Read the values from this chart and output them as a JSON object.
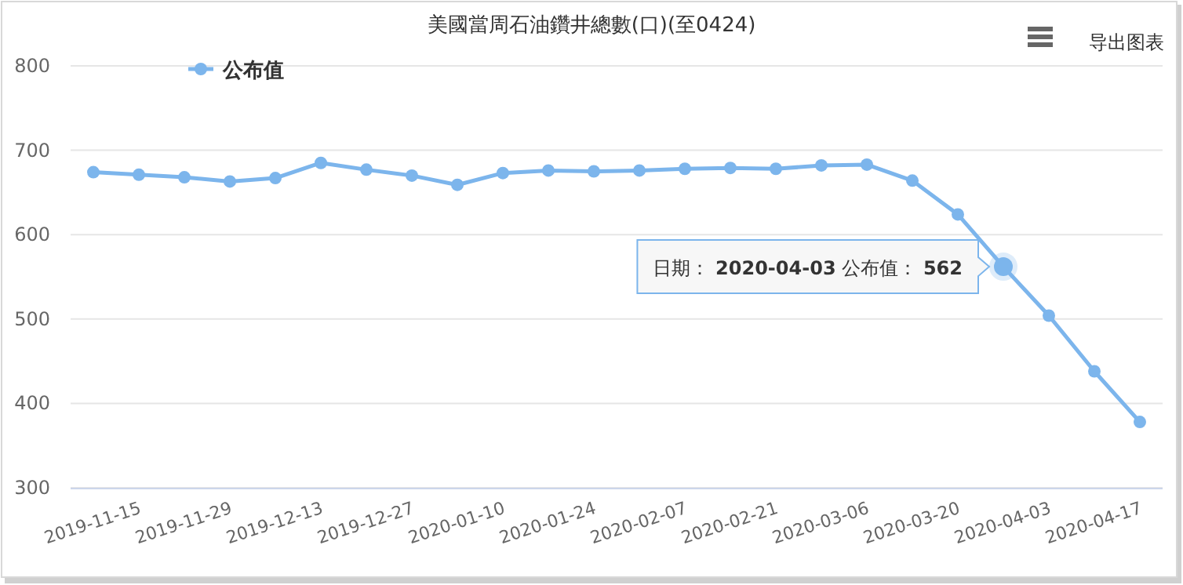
{
  "chart_data": {
    "type": "line",
    "title": "美國當周石油鑽井總數(口)(至0424)",
    "categories": [
      "2019-11-15",
      null,
      "2019-11-29",
      null,
      "2019-12-13",
      null,
      "2019-12-27",
      null,
      "2020-01-10",
      null,
      "2020-01-24",
      null,
      "2020-02-07",
      null,
      "2020-02-21",
      null,
      "2020-03-06",
      null,
      "2020-03-20",
      null,
      "2020-04-03",
      null,
      "2020-04-17",
      null
    ],
    "series": [
      {
        "name": "公布值",
        "color": "#7cb5ec",
        "values": [
          674,
          671,
          668,
          663,
          667,
          685,
          677,
          670,
          659,
          673,
          676,
          675,
          676,
          678,
          679,
          678,
          682,
          683,
          664,
          624,
          562,
          504,
          438,
          378
        ]
      }
    ],
    "ylim": [
      300,
      800
    ],
    "yticks": [
      300,
      400,
      500,
      600,
      700,
      800
    ],
    "grid": "y",
    "legend": "top left",
    "marker": "circle",
    "line_style": "solid",
    "annotations": [
      {
        "text": "日期： **2020-04-03** 公布值： **562**",
        "x": "2020-04-03",
        "y": 562
      },
      "导出图表"
    ]
  }
}
